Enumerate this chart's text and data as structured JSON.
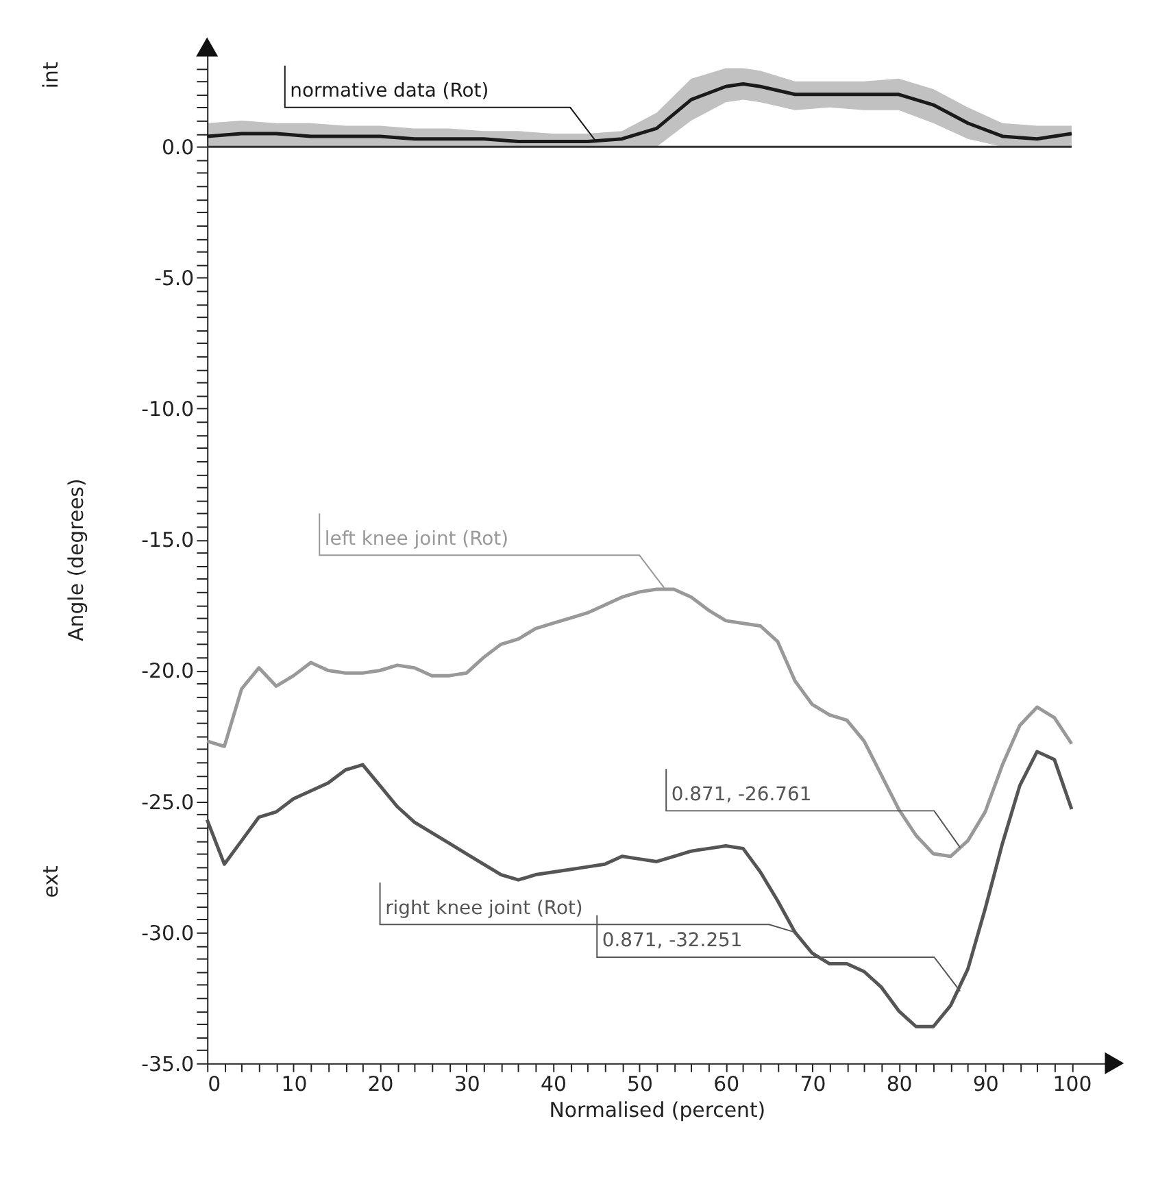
{
  "chart_data": {
    "type": "line",
    "xlabel": "Normalised (percent)",
    "ylabel": "Angle (degrees)",
    "xlim": [
      0,
      104
    ],
    "ylim": [
      -35,
      3.5
    ],
    "grid": false,
    "legend": false,
    "marker": "none",
    "line_style": "solid",
    "xticks": [
      0,
      {
        "value": 2,
        "label": null
      },
      {
        "value": 4,
        "label": null
      },
      {
        "value": 6,
        "label": null
      },
      {
        "value": 8,
        "label": null
      },
      10,
      {
        "value": 12,
        "label": null
      },
      {
        "value": 14,
        "label": null
      },
      {
        "value": 16,
        "label": null
      },
      {
        "value": 18,
        "label": null
      },
      20,
      {
        "value": 22,
        "label": null
      },
      {
        "value": 24,
        "label": null
      },
      {
        "value": 26,
        "label": null
      },
      {
        "value": 28,
        "label": null
      },
      30,
      {
        "value": 32,
        "label": null
      },
      {
        "value": 34,
        "label": null
      },
      {
        "value": 36,
        "label": null
      },
      {
        "value": 38,
        "label": null
      },
      40,
      {
        "value": 42,
        "label": null
      },
      {
        "value": 44,
        "label": null
      },
      {
        "value": 46,
        "label": null
      },
      {
        "value": 48,
        "label": null
      },
      50,
      {
        "value": 52,
        "label": null
      },
      {
        "value": 54,
        "label": null
      },
      {
        "value": 56,
        "label": null
      },
      {
        "value": 58,
        "label": null
      },
      60,
      {
        "value": 62,
        "label": null
      },
      {
        "value": 64,
        "label": null
      },
      {
        "value": 66,
        "label": null
      },
      {
        "value": 68,
        "label": null
      },
      70,
      {
        "value": 72,
        "label": null
      },
      {
        "value": 74,
        "label": null
      },
      {
        "value": 76,
        "label": null
      },
      {
        "value": 78,
        "label": null
      },
      80,
      {
        "value": 82,
        "label": null
      },
      {
        "value": 84,
        "label": null
      },
      {
        "value": 86,
        "label": null
      },
      {
        "value": 88,
        "label": null
      },
      90,
      {
        "value": 92,
        "label": null
      },
      {
        "value": 94,
        "label": null
      },
      {
        "value": 96,
        "label": null
      },
      {
        "value": 98,
        "label": null
      },
      100
    ],
    "yticks": [
      {
        "value": -35,
        "label": "-35.0"
      },
      {
        "value": -34.5,
        "label": null
      },
      {
        "value": -34,
        "label": null
      },
      {
        "value": -33.5,
        "label": null
      },
      {
        "value": -33,
        "label": null
      },
      {
        "value": -32.5,
        "label": null
      },
      {
        "value": -32,
        "label": null
      },
      {
        "value": -31.5,
        "label": null
      },
      {
        "value": -31,
        "label": null
      },
      {
        "value": -30.5,
        "label": null
      },
      {
        "value": -30,
        "label": "-30.0"
      },
      {
        "value": -29.5,
        "label": null
      },
      {
        "value": -29,
        "label": null
      },
      {
        "value": -28.5,
        "label": null
      },
      {
        "value": -28,
        "label": null
      },
      {
        "value": -27.5,
        "label": null
      },
      {
        "value": -27,
        "label": null
      },
      {
        "value": -26.5,
        "label": null
      },
      {
        "value": -26,
        "label": null
      },
      {
        "value": -25.5,
        "label": null
      },
      {
        "value": -25,
        "label": "-25.0"
      },
      {
        "value": -24.5,
        "label": null
      },
      {
        "value": -24,
        "label": null
      },
      {
        "value": -23.5,
        "label": null
      },
      {
        "value": -23,
        "label": null
      },
      {
        "value": -22.5,
        "label": null
      },
      {
        "value": -22,
        "label": null
      },
      {
        "value": -21.5,
        "label": null
      },
      {
        "value": -21,
        "label": null
      },
      {
        "value": -20.5,
        "label": null
      },
      {
        "value": -20,
        "label": "-20.0"
      },
      {
        "value": -19.5,
        "label": null
      },
      {
        "value": -19,
        "label": null
      },
      {
        "value": -18.5,
        "label": null
      },
      {
        "value": -18,
        "label": null
      },
      {
        "value": -17.5,
        "label": null
      },
      {
        "value": -17,
        "label": null
      },
      {
        "value": -16.5,
        "label": null
      },
      {
        "value": -16,
        "label": null
      },
      {
        "value": -15.5,
        "label": null
      },
      {
        "value": -15,
        "label": "-15.0"
      },
      {
        "value": -14.5,
        "label": null
      },
      {
        "value": -14,
        "label": null
      },
      {
        "value": -13.5,
        "label": null
      },
      {
        "value": -13,
        "label": null
      },
      {
        "value": -12.5,
        "label": null
      },
      {
        "value": -12,
        "label": null
      },
      {
        "value": -11.5,
        "label": null
      },
      {
        "value": -11,
        "label": null
      },
      {
        "value": -10.5,
        "label": null
      },
      {
        "value": -10,
        "label": "-10.0"
      },
      {
        "value": -9.5,
        "label": null
      },
      {
        "value": -9,
        "label": null
      },
      {
        "value": -8.5,
        "label": null
      },
      {
        "value": -8,
        "label": null
      },
      {
        "value": -7.5,
        "label": null
      },
      {
        "value": -7,
        "label": null
      },
      {
        "value": -6.5,
        "label": null
      },
      {
        "value": -6,
        "label": null
      },
      {
        "value": -5.5,
        "label": null
      },
      {
        "value": -5,
        "label": "-5.0"
      },
      {
        "value": -4.5,
        "label": null
      },
      {
        "value": -4,
        "label": null
      },
      {
        "value": -3.5,
        "label": null
      },
      {
        "value": -3,
        "label": null
      },
      {
        "value": -2.5,
        "label": null
      },
      {
        "value": -2,
        "label": null
      },
      {
        "value": -1.5,
        "label": null
      },
      {
        "value": -1,
        "label": null
      },
      {
        "value": -0.5,
        "label": null
      },
      {
        "value": 0,
        "label": "0.0"
      },
      {
        "value": 0.5,
        "label": null
      },
      {
        "value": 1,
        "label": null
      },
      {
        "value": 1.5,
        "label": null
      },
      {
        "value": 2,
        "label": null
      },
      {
        "value": 2.5,
        "label": null
      },
      {
        "value": 3,
        "label": null
      }
    ],
    "ref_lines": [
      {
        "axis": "y",
        "value": 0,
        "color": "#333333"
      }
    ],
    "annotations": [
      "int",
      "ext",
      {
        "text": "normative data (Rot)",
        "x": 45,
        "y": 0.2
      },
      {
        "text": "left knee joint (Rot)",
        "x": 53,
        "y": -16.9
      },
      {
        "text": "0.871, -26.761",
        "x": 87.1,
        "y": -26.761
      },
      {
        "text": "right knee joint (Rot)",
        "x": 68,
        "y": -30.0
      },
      {
        "text": "0.871, -32.251",
        "x": 87.1,
        "y": -32.251
      }
    ],
    "series": [
      {
        "color": "#1a1a1a",
        "x": [
          0,
          4,
          8,
          12,
          16,
          20,
          24,
          28,
          32,
          36,
          40,
          44,
          48,
          52,
          56,
          60,
          62,
          64,
          68,
          72,
          76,
          80,
          84,
          88,
          92,
          96,
          100
        ],
        "values": [
          0.4,
          0.5,
          0.5,
          0.4,
          0.4,
          0.4,
          0.3,
          0.3,
          0.3,
          0.2,
          0.2,
          0.2,
          0.3,
          0.7,
          1.8,
          2.3,
          2.4,
          2.3,
          2.0,
          2.0,
          2.0,
          2.0,
          1.6,
          0.9,
          0.4,
          0.3,
          0.5
        ],
        "lower": [
          0.0,
          0.0,
          0.0,
          0.0,
          0.0,
          0.0,
          0.0,
          0.0,
          0.0,
          0.0,
          0.0,
          0.0,
          0.0,
          0.0,
          1.0,
          1.7,
          1.8,
          1.7,
          1.4,
          1.5,
          1.4,
          1.4,
          0.9,
          0.3,
          0.0,
          0.0,
          0.0
        ],
        "upper": [
          0.9,
          1.0,
          0.9,
          0.9,
          0.8,
          0.8,
          0.7,
          0.7,
          0.6,
          0.6,
          0.5,
          0.5,
          0.6,
          1.3,
          2.6,
          3.0,
          3.0,
          2.9,
          2.5,
          2.5,
          2.5,
          2.6,
          2.2,
          1.5,
          0.9,
          0.8,
          0.8
        ]
      },
      {
        "color": "#999999",
        "x": [
          0,
          2,
          4,
          6,
          8,
          10,
          12,
          14,
          16,
          18,
          20,
          22,
          24,
          26,
          28,
          30,
          32,
          34,
          36,
          38,
          40,
          42,
          44,
          46,
          48,
          50,
          52,
          54,
          56,
          58,
          60,
          62,
          64,
          66,
          68,
          70,
          72,
          74,
          76,
          78,
          80,
          82,
          84,
          86,
          88,
          90,
          92,
          94,
          96,
          98,
          100
        ],
        "values": [
          -22.7,
          -22.9,
          -20.7,
          -19.9,
          -20.6,
          -20.2,
          -19.7,
          -20.0,
          -20.1,
          -20.1,
          -20.0,
          -19.8,
          -19.9,
          -20.2,
          -20.2,
          -20.1,
          -19.5,
          -19.0,
          -18.8,
          -18.4,
          -18.2,
          -18.0,
          -17.8,
          -17.5,
          -17.2,
          -17.0,
          -16.9,
          -16.9,
          -17.2,
          -17.7,
          -18.1,
          -18.2,
          -18.3,
          -18.9,
          -20.4,
          -21.3,
          -21.7,
          -21.9,
          -22.7,
          -24.0,
          -25.3,
          -26.3,
          -27.0,
          -27.1,
          -26.5,
          -25.4,
          -23.6,
          -22.1,
          -21.4,
          -21.8,
          -22.8
        ]
      },
      {
        "color": "#555555",
        "x": [
          0,
          2,
          4,
          6,
          8,
          10,
          12,
          14,
          16,
          18,
          20,
          22,
          24,
          26,
          28,
          30,
          32,
          34,
          36,
          38,
          40,
          42,
          44,
          46,
          48,
          50,
          52,
          54,
          56,
          58,
          60,
          62,
          64,
          66,
          68,
          70,
          72,
          74,
          76,
          78,
          80,
          82,
          84,
          86,
          88,
          90,
          92,
          94,
          96,
          98,
          100
        ],
        "values": [
          -25.7,
          -27.4,
          -26.5,
          -25.6,
          -25.4,
          -24.9,
          -24.6,
          -24.3,
          -23.8,
          -23.6,
          -24.4,
          -25.2,
          -25.8,
          -26.2,
          -26.6,
          -27.0,
          -27.4,
          -27.8,
          -28.0,
          -27.8,
          -27.7,
          -27.6,
          -27.5,
          -27.4,
          -27.1,
          -27.2,
          -27.3,
          -27.1,
          -26.9,
          -26.8,
          -26.7,
          -26.8,
          -27.7,
          -28.8,
          -30.0,
          -30.8,
          -31.2,
          -31.2,
          -31.5,
          -32.1,
          -33.0,
          -33.6,
          -33.6,
          -32.8,
          -31.4,
          -29.1,
          -26.6,
          -24.4,
          -23.1,
          -23.4,
          -25.3
        ]
      }
    ]
  }
}
